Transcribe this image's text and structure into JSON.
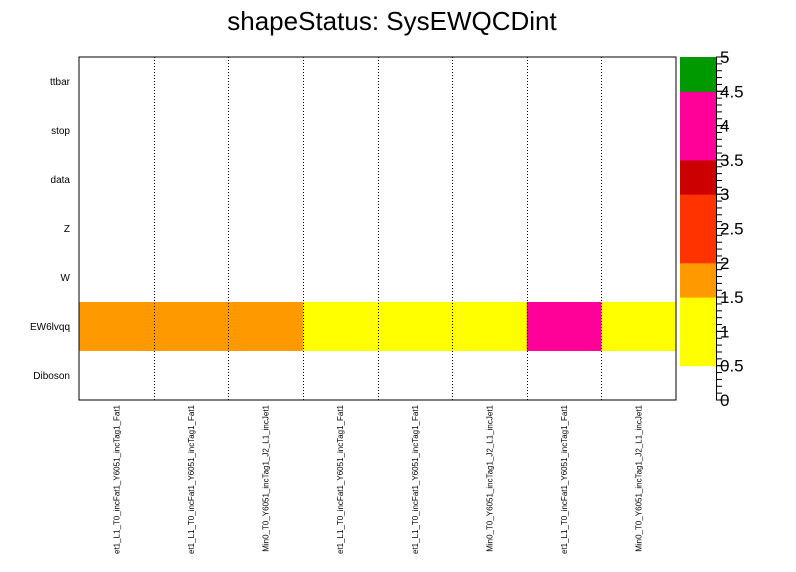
{
  "chart_data": {
    "type": "heatmap",
    "title": "shapeStatus: SysEWQCDint",
    "y_categories": [
      "Diboson",
      "EW6lvqq",
      "W",
      "Z",
      "data",
      "stop",
      "ttbar"
    ],
    "x_categories": [
      "et1_L1_T0_incFat1_Y6051_incTag1_Fat1",
      "et1_L1_T0_incFat1_Y6051_incTag1_Fat1",
      "Min0_T0_Y6051_incTag1_J2_L1_incJet1",
      "et1_L1_T0_incFat1_Y6051_incTag1_Fat1",
      "et1_L1_T0_incFat1_Y6051_incTag1_Fat1",
      "Min0_T0_Y6051_incTag1_J2_L1_incJet1",
      "et1_L1_T0_incFat1_Y6051_incTag1_Fat1",
      "Min0_T0_Y6051_incTag1_J2_L1_incJet1"
    ],
    "cells": [
      {
        "y": "EW6lvqq",
        "x_index": 0,
        "value": 2
      },
      {
        "y": "EW6lvqq",
        "x_index": 1,
        "value": 2
      },
      {
        "y": "EW6lvqq",
        "x_index": 2,
        "value": 2
      },
      {
        "y": "EW6lvqq",
        "x_index": 3,
        "value": 1
      },
      {
        "y": "EW6lvqq",
        "x_index": 4,
        "value": 1
      },
      {
        "y": "EW6lvqq",
        "x_index": 5,
        "value": 1
      },
      {
        "y": "EW6lvqq",
        "x_index": 6,
        "value": 4
      },
      {
        "y": "EW6lvqq",
        "x_index": 7,
        "value": 1
      }
    ],
    "zlim": [
      0,
      5
    ],
    "z_ticks": [
      "0",
      "0.5",
      "1",
      "1.5",
      "2",
      "2.5",
      "3",
      "3.5",
      "4",
      "4.5",
      "5"
    ],
    "palette": [
      {
        "from": 0.5,
        "to": 1.0,
        "color": "#ffff00"
      },
      {
        "from": 1.0,
        "to": 1.5,
        "color": "#ffff00"
      },
      {
        "from": 1.5,
        "to": 2.0,
        "color": "#ff9900"
      },
      {
        "from": 2.0,
        "to": 2.5,
        "color": "#ff3300"
      },
      {
        "from": 2.5,
        "to": 3.0,
        "color": "#ff3300"
      },
      {
        "from": 3.0,
        "to": 3.5,
        "color": "#cc0000"
      },
      {
        "from": 3.5,
        "to": 4.0,
        "color": "#ff0099"
      },
      {
        "from": 4.0,
        "to": 4.5,
        "color": "#ff0099"
      },
      {
        "from": 4.5,
        "to": 5.0,
        "color": "#009900"
      }
    ],
    "vertical_dotted_separators": true
  }
}
